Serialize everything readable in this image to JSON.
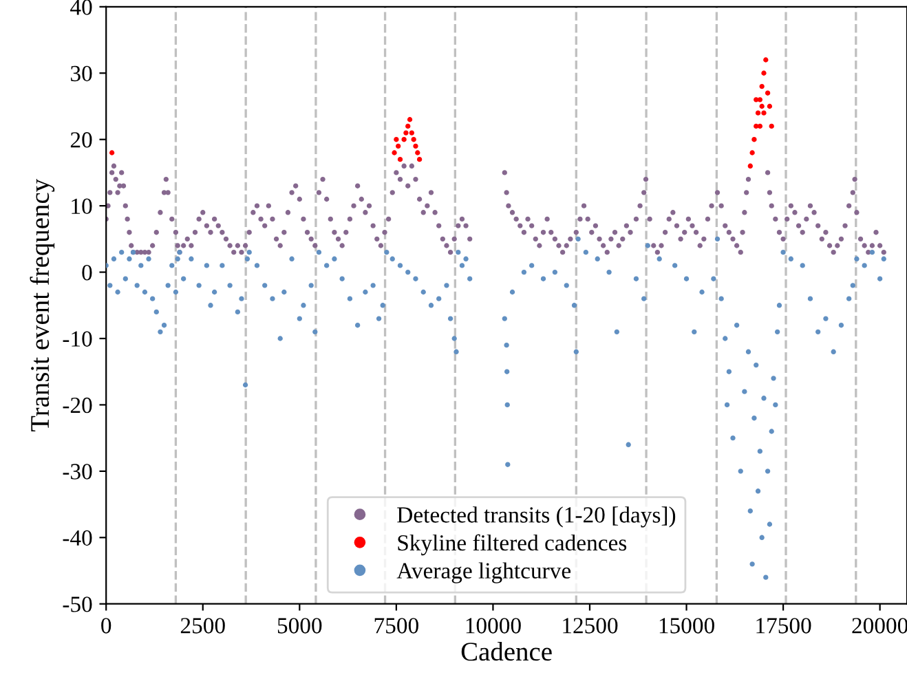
{
  "chart_data": {
    "type": "scatter",
    "xlabel": "Cadence",
    "ylabel": "Transit event frequency",
    "xlim": [
      0,
      20700
    ],
    "ylim": [
      -50,
      40
    ],
    "xticks": [
      0,
      2500,
      5000,
      7500,
      10000,
      12500,
      15000,
      17500,
      20000
    ],
    "yticks": [
      -50,
      -40,
      -30,
      -20,
      -10,
      0,
      10,
      20,
      30,
      40
    ],
    "grid": false,
    "legend": "bottom",
    "marker": "circle",
    "ref_lines": [
      {
        "axis": "x",
        "value": 1800,
        "color": "#c0c0c0",
        "line_style": "dashed"
      },
      {
        "axis": "x",
        "value": 3610,
        "color": "#c0c0c0",
        "line_style": "dashed"
      },
      {
        "axis": "x",
        "value": 5420,
        "color": "#c0c0c0",
        "line_style": "dashed"
      },
      {
        "axis": "x",
        "value": 7210,
        "color": "#c0c0c0",
        "line_style": "dashed"
      },
      {
        "axis": "x",
        "value": 9020,
        "color": "#c0c0c0",
        "line_style": "dashed"
      },
      {
        "axis": "x",
        "value": 12150,
        "color": "#c0c0c0",
        "line_style": "dashed"
      },
      {
        "axis": "x",
        "value": 13960,
        "color": "#c0c0c0",
        "line_style": "dashed"
      },
      {
        "axis": "x",
        "value": 15780,
        "color": "#c0c0c0",
        "line_style": "dashed"
      },
      {
        "axis": "x",
        "value": 17570,
        "color": "#c0c0c0",
        "line_style": "dashed"
      },
      {
        "axis": "x",
        "value": 19380,
        "color": "#c0c0c0",
        "line_style": "dashed"
      }
    ],
    "series": [
      {
        "name": "Detected transits (1-20 [days])",
        "color": "#86688f",
        "x": [
          0,
          50,
          100,
          150,
          200,
          250,
          300,
          350,
          400,
          450,
          500,
          550,
          600,
          650,
          700,
          800,
          900,
          1000,
          1100,
          1200,
          1300,
          1400,
          1500,
          1550,
          1600,
          1700,
          1800,
          1850,
          1900,
          2000,
          2100,
          2200,
          2300,
          2400,
          2500,
          2600,
          2700,
          2800,
          2900,
          3000,
          3100,
          3200,
          3300,
          3400,
          3500,
          3600,
          3700,
          3800,
          3900,
          4000,
          4100,
          4200,
          4300,
          4400,
          4500,
          4600,
          4700,
          4800,
          4900,
          5000,
          5100,
          5200,
          5300,
          5400,
          5500,
          5600,
          5700,
          5800,
          5900,
          6000,
          6100,
          6200,
          6300,
          6400,
          6500,
          6600,
          6700,
          6800,
          6900,
          7000,
          7100,
          7200,
          7300,
          7400,
          7500,
          7600,
          7700,
          7800,
          7900,
          8000,
          8100,
          8200,
          8300,
          8400,
          8500,
          8600,
          8700,
          8800,
          8900,
          9000,
          9100,
          9200,
          9300,
          9400,
          10300,
          10350,
          10400,
          10500,
          10600,
          10700,
          10800,
          10900,
          11000,
          11100,
          11200,
          11300,
          11400,
          11500,
          11600,
          11700,
          11800,
          11900,
          12000,
          12150,
          12250,
          12350,
          12450,
          12550,
          12650,
          12750,
          12850,
          12950,
          13050,
          13150,
          13250,
          13350,
          13450,
          13550,
          13700,
          13800,
          13900,
          13950,
          14050,
          14150,
          14250,
          14350,
          14450,
          14550,
          14650,
          14750,
          14850,
          14950,
          15050,
          15150,
          15250,
          15350,
          15450,
          15550,
          15650,
          15800,
          15900,
          16000,
          16100,
          16200,
          16300,
          16400,
          16450,
          16500,
          16550,
          16600,
          17100,
          17150,
          17200,
          17300,
          17400,
          17500,
          17600,
          17700,
          17800,
          17900,
          18000,
          18100,
          18200,
          18300,
          18400,
          18500,
          18600,
          18700,
          18800,
          18900,
          19000,
          19100,
          19200,
          19300,
          19350,
          19400,
          19500,
          19600,
          19700,
          19800,
          19900,
          20000,
          20100
        ],
        "values": [
          8,
          10,
          12,
          15,
          16,
          14,
          12,
          13,
          15,
          13,
          10,
          8,
          6,
          4,
          3,
          3,
          3,
          3,
          3,
          4,
          6,
          9,
          12,
          14,
          12,
          8,
          6,
          4,
          3,
          4,
          5,
          4,
          6,
          8,
          9,
          7,
          6,
          8,
          7,
          6,
          5,
          4,
          3,
          4,
          3,
          4,
          6,
          9,
          10,
          8,
          7,
          10,
          8,
          5,
          4,
          6,
          9,
          12,
          13,
          11,
          8,
          6,
          5,
          4,
          12,
          14,
          11,
          8,
          6,
          5,
          4,
          6,
          8,
          10,
          13,
          11,
          9,
          10,
          7,
          5,
          4,
          6,
          8,
          12,
          15,
          14,
          16,
          13,
          16,
          14,
          11,
          9,
          10,
          12,
          9,
          7,
          5,
          4,
          3,
          5,
          7,
          8,
          7,
          5,
          15,
          12,
          10,
          9,
          8,
          7,
          6,
          8,
          7,
          5,
          4,
          6,
          8,
          6,
          5,
          4,
          3,
          4,
          5,
          6,
          8,
          10,
          8,
          6,
          7,
          5,
          4,
          3,
          5,
          6,
          4,
          5,
          7,
          6,
          8,
          10,
          12,
          14,
          8,
          4,
          3,
          4,
          6,
          8,
          9,
          7,
          5,
          6,
          8,
          7,
          6,
          4,
          5,
          8,
          10,
          12,
          10,
          7,
          6,
          5,
          4,
          3,
          6,
          9,
          12,
          14,
          15,
          12,
          10,
          8,
          6,
          5,
          8,
          10,
          9,
          7,
          6,
          8,
          10,
          9,
          7,
          5,
          6,
          4,
          3,
          4,
          5,
          7,
          10,
          12,
          14,
          9,
          5,
          4,
          3,
          4,
          6,
          4,
          3
        ]
      },
      {
        "name": "Skyline filtered cadences",
        "color": "#ff0000",
        "x": [
          150,
          7450,
          7500,
          7550,
          7600,
          7700,
          7750,
          7800,
          7850,
          7900,
          7950,
          8000,
          8050,
          8100,
          16650,
          16700,
          16750,
          16800,
          16800,
          16850,
          16900,
          16900,
          16950,
          16950,
          17000,
          17000,
          17050,
          17100,
          17150,
          17200
        ],
        "values": [
          18,
          18,
          20,
          19,
          17,
          20,
          21,
          22,
          23,
          21,
          20,
          19,
          18,
          17,
          16,
          18,
          20,
          22,
          26,
          24,
          26,
          22,
          28,
          25,
          30,
          24,
          32,
          27,
          25,
          22
        ]
      },
      {
        "name": "Average lightcurve",
        "color": "#6190c2",
        "x": [
          0,
          100,
          200,
          300,
          400,
          500,
          600,
          700,
          800,
          900,
          1000,
          1100,
          1200,
          1300,
          1400,
          1500,
          1600,
          1700,
          1800,
          1850,
          1900,
          2000,
          2200,
          2400,
          2600,
          2700,
          2800,
          3000,
          3200,
          3400,
          3500,
          3600,
          3650,
          3700,
          3900,
          4100,
          4300,
          4500,
          4600,
          4800,
          5000,
          5100,
          5300,
          5400,
          5500,
          5700,
          5900,
          6100,
          6300,
          6500,
          6700,
          6900,
          7050,
          7150,
          7250,
          7400,
          7600,
          7800,
          8000,
          8200,
          8400,
          8600,
          8800,
          8900,
          9000,
          9050,
          9100,
          9200,
          9300,
          9400,
          10300,
          10350,
          10360,
          10370,
          10380,
          10500,
          10800,
          11000,
          11300,
          11600,
          11900,
          12100,
          12150,
          12200,
          12400,
          12700,
          13000,
          13200,
          13500,
          13700,
          13900,
          14000,
          14300,
          14700,
          15000,
          15200,
          15400,
          15700,
          15800,
          15900,
          16000,
          16050,
          16100,
          16200,
          16300,
          16400,
          16500,
          16600,
          16650,
          16700,
          16750,
          16800,
          16850,
          16900,
          16950,
          17000,
          17050,
          17100,
          17150,
          17200,
          17250,
          17300,
          17350,
          17400,
          17500,
          17700,
          18000,
          18200,
          18400,
          18600,
          18800,
          19000,
          19200,
          19300,
          19400,
          19600,
          19800,
          20000,
          20100
        ],
        "values": [
          1,
          -2,
          2,
          -3,
          3,
          -1,
          2,
          3,
          -2,
          1,
          -3,
          2,
          -4,
          -6,
          -9,
          -8,
          -2,
          1,
          -3,
          2,
          3,
          -1,
          2,
          -2,
          1,
          -5,
          -3,
          1,
          -2,
          -6,
          -4,
          -17,
          2,
          3,
          1,
          -2,
          -4,
          -10,
          -3,
          2,
          -7,
          -5,
          -2,
          -9,
          3,
          1,
          2,
          -1,
          -4,
          -8,
          -3,
          -2,
          -7,
          -5,
          3,
          2,
          1,
          0,
          -1,
          -3,
          -5,
          -4,
          -2,
          -7,
          -10,
          -12,
          3,
          1,
          2,
          -1,
          -7,
          -11,
          -15,
          -20,
          -29,
          -3,
          0,
          1,
          -1,
          0,
          -2,
          -5,
          -12,
          5,
          3,
          2,
          0,
          -9,
          -26,
          -1,
          -4,
          4,
          2,
          1,
          -1,
          -9,
          -3,
          -1,
          5,
          -4,
          -10,
          -20,
          -15,
          -25,
          -8,
          -30,
          -18,
          -12,
          -36,
          -44,
          -22,
          -14,
          -33,
          -27,
          -40,
          -19,
          -46,
          -30,
          -38,
          -24,
          -16,
          -20,
          -9,
          -5,
          3,
          2,
          1,
          -4,
          -9,
          -7,
          -12,
          -8,
          -4,
          -2,
          2,
          1,
          3,
          -1,
          2
        ]
      }
    ]
  }
}
